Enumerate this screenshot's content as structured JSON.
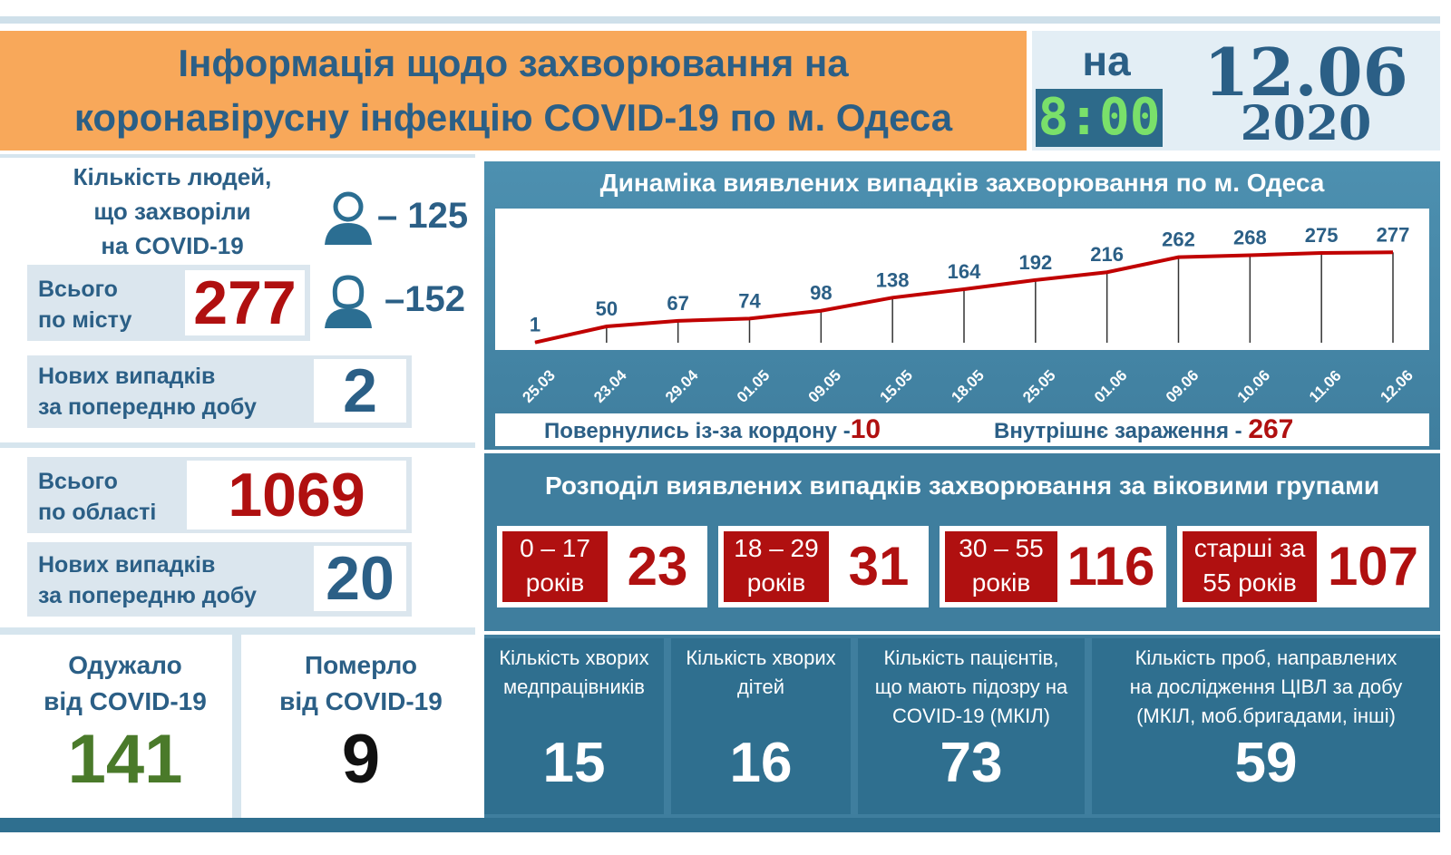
{
  "header": {
    "title_line1": "Інформація щодо захворювання на",
    "title_line2": "коронавірусну інфекцію COVID-19 по м. Одеса",
    "na": "на",
    "time": "8:00",
    "date_day": "12.06",
    "date_year": "2020"
  },
  "city": {
    "people_label_1": "Кількість людей,",
    "people_label_2": "що захворіли",
    "people_label_3": "на COVID-19",
    "male": "– 125",
    "female": "–152",
    "total_label_1": "Всього",
    "total_label_2": "по місту",
    "total": "277",
    "new_label_1": "Нових випадків",
    "new_label_2": "за попередню добу",
    "new": "2"
  },
  "region": {
    "total_label_1": "Всього",
    "total_label_2": "по області",
    "total": "1069",
    "new_label_1": "Нових випадків",
    "new_label_2": "за попередню добу",
    "new": "20"
  },
  "outcomes": {
    "recovered_label_1": "Одужало",
    "recovered_label_2": "від COVID-19",
    "recovered": "141",
    "died_label_1": "Померло",
    "died_label_2": "від COVID-19",
    "died": "9"
  },
  "chart_data": {
    "type": "line",
    "title": "Динаміка виявлених випадків захворювання по м. Одеса",
    "categories": [
      "25.03",
      "23.04",
      "29.04",
      "01.05",
      "09.05",
      "15.05",
      "18.05",
      "25.05",
      "01.06",
      "09.06",
      "10.06",
      "11.06",
      "12.06"
    ],
    "series": [
      {
        "values": [
          1,
          50,
          67,
          74,
          98,
          138,
          164,
          192,
          216,
          262,
          268,
          275,
          277
        ]
      }
    ],
    "ylim": [
      0,
      300
    ],
    "line_color": "#c00000"
  },
  "infobar": {
    "returned_label": "Повернулись із-за кордону -",
    "returned": "10",
    "internal_label": "Внутрішнє зараження - ",
    "internal": "267"
  },
  "age": {
    "title": "Розподіл виявлених випадків захворювання за віковими групами",
    "groups": [
      {
        "line1": "0 – 17",
        "line2": "років",
        "value": "23"
      },
      {
        "line1": "18 – 29",
        "line2": "років",
        "value": "31"
      },
      {
        "line1": "30 – 55",
        "line2": "років",
        "value": "116"
      },
      {
        "line1": "старші за",
        "line2": "55 років",
        "value": "107"
      }
    ]
  },
  "stats": [
    {
      "l1": "Кількість хворих",
      "l2": "медпрацівників",
      "l3": "",
      "value": "15"
    },
    {
      "l1": "Кількість хворих",
      "l2": "дітей",
      "l3": "",
      "value": "16"
    },
    {
      "l1": "Кількість пацієнтів,",
      "l2": "що мають підозру на",
      "l3": "COVID-19 (МКІЛ)",
      "value": "73"
    },
    {
      "l1": "Кількість проб, направлених",
      "l2": "на дослідження ЦІВЛ за добу",
      "l3": "(МКІЛ, моб.бригадами, інші)",
      "value": "59"
    }
  ],
  "colors": {
    "accent_red": "#b01010",
    "blue_text": "#2b5f86",
    "green": "#4a7a2a"
  }
}
